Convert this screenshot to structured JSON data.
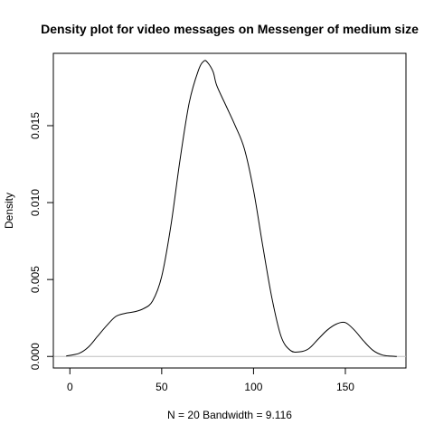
{
  "chart_data": {
    "type": "line",
    "title": "Density plot for video messages on Messenger of medium size",
    "xlabel": "N = 20   Bandwidth = 9.116",
    "ylabel": "Density",
    "xlim": [
      -9,
      183
    ],
    "ylim": [
      -0.00075,
      0.0197
    ],
    "x_ticks": [
      0,
      50,
      100,
      150
    ],
    "x_tick_labels": [
      "0",
      "50",
      "100",
      "150"
    ],
    "y_ticks": [
      0.0,
      0.005,
      0.01,
      0.015
    ],
    "y_tick_labels": [
      "0.000",
      "0.005",
      "0.010",
      "0.015"
    ],
    "grid": false,
    "baseline": 0,
    "baseline_color": "#bebebe",
    "line_color": "#000000",
    "series": [
      {
        "x": [
          -2,
          5,
          10,
          15,
          20,
          25,
          30,
          35,
          40,
          45,
          50,
          55,
          60,
          65,
          70,
          73,
          75,
          78,
          80,
          85,
          90,
          95,
          100,
          105,
          110,
          115,
          120,
          125,
          130,
          135,
          140,
          145,
          150,
          155,
          160,
          165,
          170,
          175,
          178
        ],
        "y": [
          3e-05,
          0.0002,
          0.0006,
          0.0013,
          0.002,
          0.0026,
          0.0028,
          0.0029,
          0.0031,
          0.0036,
          0.0052,
          0.0085,
          0.0128,
          0.0165,
          0.0186,
          0.0192,
          0.0191,
          0.0185,
          0.0176,
          0.0163,
          0.015,
          0.0135,
          0.0108,
          0.0072,
          0.0038,
          0.0013,
          0.0004,
          0.0003,
          0.0005,
          0.0011,
          0.0017,
          0.0021,
          0.0022,
          0.0017,
          0.001,
          0.0004,
          0.0001,
          2e-05,
          0.0
        ]
      }
    ]
  }
}
